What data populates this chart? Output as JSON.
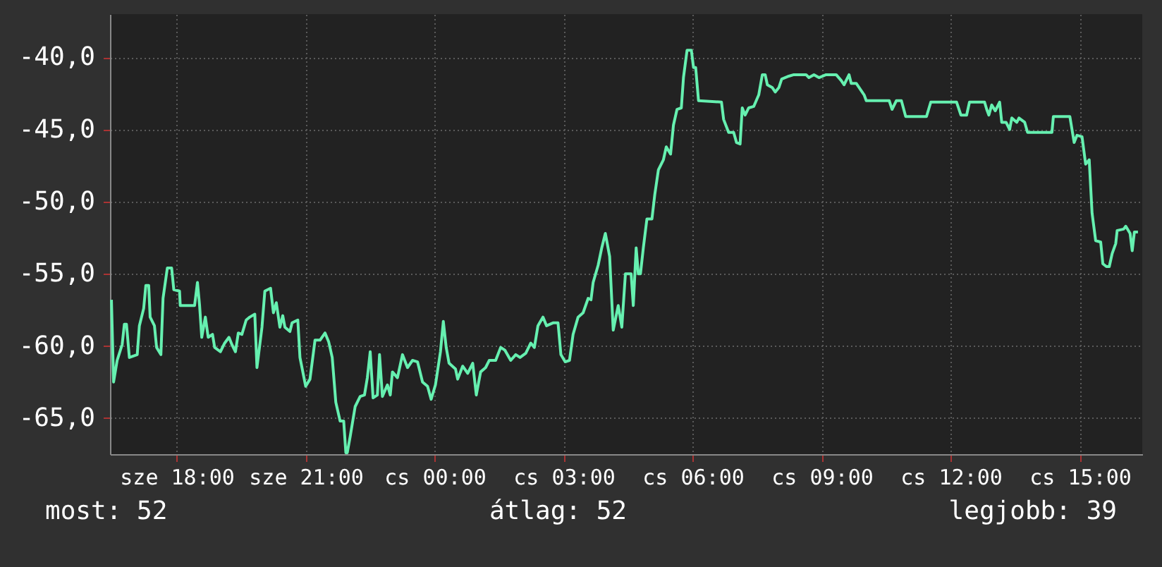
{
  "chart_data": {
    "type": "line",
    "x": [
      "--01-01T16:29",
      "--01-01T16:32",
      "--01-01T16:37",
      "--01-01T16:44",
      "--01-01T16:47",
      "--01-01T16:50",
      "--01-01T16:54",
      "--01-01T17:05",
      "--01-01T17:08",
      "--01-01T17:14",
      "--01-01T17:17",
      "--01-01T17:21",
      "--01-01T17:23",
      "--01-01T17:29",
      "--01-01T17:32",
      "--01-01T17:38",
      "--01-01T17:41",
      "--01-01T17:47",
      "--01-01T17:53",
      "--01-01T17:56",
      "--01-01T18:04",
      "--01-01T18:05",
      "--01-01T18:25",
      "--01-01T18:29",
      "--01-01T18:32",
      "--01-01T18:35",
      "--01-01T18:40",
      "--01-01T18:44",
      "--01-01T18:50",
      "--01-01T18:53",
      "--01-01T19:01",
      "--01-01T19:07",
      "--01-01T19:13",
      "--01-01T19:17",
      "--01-01T19:22",
      "--01-01T19:26",
      "--01-01T19:31",
      "--01-01T19:37",
      "--01-01T19:42",
      "--01-01T19:49",
      "--01-01T19:52",
      "--01-01T19:59",
      "--01-01T20:03",
      "--01-01T20:11",
      "--01-01T20:15",
      "--01-01T20:19",
      "--01-01T20:24",
      "--01-01T20:28",
      "--01-01T20:31",
      "--01-01T20:38",
      "--01-01T20:41",
      "--01-01T20:49",
      "--01-01T20:52",
      "--01-01T21:00",
      "--01-01T21:06",
      "--01-01T21:13",
      "--01-01T21:20",
      "--01-01T21:27",
      "--01-01T21:32",
      "--01-01T21:37",
      "--01-01T21:42",
      "--01-01T21:48",
      "--01-01T21:53",
      "--01-01T21:56",
      "--01-01T21:58",
      "--01-01T22:02",
      "--01-01T22:09",
      "--01-01T22:16",
      "--01-01T22:22",
      "--01-01T22:26",
      "--01-01T22:30",
      "--01-01T22:34",
      "--01-01T22:40",
      "--01-01T22:43",
      "--01-01T22:47",
      "--01-01T22:54",
      "--01-01T22:58",
      "--01-01T23:01",
      "--01-01T23:08",
      "--01-01T23:15",
      "--01-01T23:22",
      "--01-01T23:29",
      "--01-01T23:36",
      "--01-01T23:43",
      "--01-01T23:50",
      "--01-01T23:55",
      "--01-02T00:01",
      "--01-02T00:08",
      "--01-02T00:12",
      "--01-02T00:16",
      "--01-02T00:20",
      "--01-02T00:29",
      "--01-02T00:32",
      "--01-02T00:39",
      "--01-02T00:46",
      "--01-02T00:53",
      "--01-02T00:58",
      "--01-02T01:04",
      "--01-02T01:11",
      "--01-02T01:16",
      "--01-02T01:25",
      "--01-02T01:32",
      "--01-02T01:38",
      "--01-02T01:46",
      "--01-02T01:53",
      "--01-02T01:59",
      "--01-02T02:07",
      "--01-02T02:14",
      "--01-02T02:19",
      "--01-02T02:24",
      "--01-02T02:31",
      "--01-02T02:36",
      "--01-02T02:45",
      "--01-02T02:52",
      "--01-02T02:56",
      "--01-02T03:02",
      "--01-02T03:08",
      "--01-02T03:13",
      "--01-02T03:20",
      "--01-02T03:27",
      "--01-02T03:34",
      "--01-02T03:38",
      "--01-02T03:41",
      "--01-02T03:48",
      "--01-02T03:53",
      "--01-02T03:58",
      "--01-02T04:04",
      "--01-02T04:09",
      "--01-02T04:16",
      "--01-02T04:21",
      "--01-02T04:26",
      "--01-02T04:34",
      "--01-02T04:37",
      "--01-02T04:41",
      "--01-02T04:44",
      "--01-02T04:47",
      "--01-02T04:51",
      "--01-02T04:56",
      "--01-02T05:03",
      "--01-02T05:07",
      "--01-02T05:12",
      "--01-02T05:19",
      "--01-02T05:23",
      "--01-02T05:29",
      "--01-02T05:33",
      "--01-02T05:38",
      "--01-02T05:44",
      "--01-02T05:47",
      "--01-02T05:52",
      "--01-02T05:58",
      "--01-02T06:01",
      "--01-02T06:04",
      "--01-02T06:08",
      "--01-02T06:40",
      "--01-02T06:43",
      "--01-02T06:50",
      "--01-02T06:57",
      "--01-02T07:01",
      "--01-02T07:06",
      "--01-02T07:09",
      "--01-02T07:13",
      "--01-02T07:18",
      "--01-02T07:25",
      "--01-02T07:32",
      "--01-02T07:37",
      "--01-02T07:41",
      "--01-02T07:44",
      "--01-02T07:51",
      "--01-02T07:55",
      "--01-02T08:00",
      "--01-02T08:04",
      "--01-02T08:14",
      "--01-02T08:21",
      "--01-02T08:38",
      "--01-02T08:42",
      "--01-02T08:49",
      "--01-02T08:56",
      "--01-02T09:06",
      "--01-02T09:13",
      "--01-02T09:20",
      "--01-02T09:27",
      "--01-02T09:31",
      "--01-02T09:38",
      "--01-02T09:41",
      "--01-02T09:48",
      "--01-02T09:59",
      "--01-02T10:02",
      "--01-02T10:34",
      "--01-02T10:38",
      "--01-02T10:44",
      "--01-02T10:51",
      "--01-02T10:57",
      "--01-02T11:26",
      "--01-02T11:32",
      "--01-02T12:08",
      "--01-02T12:14",
      "--01-02T12:22",
      "--01-02T12:26",
      "--01-02T12:47",
      "--01-02T12:50",
      "--01-02T12:53",
      "--01-02T12:57",
      "--01-02T13:02",
      "--01-02T13:08",
      "--01-02T13:11",
      "--01-02T13:17",
      "--01-02T13:22",
      "--01-02T13:25",
      "--01-02T13:32",
      "--01-02T13:35",
      "--01-02T13:43",
      "--01-02T13:47",
      "--01-02T14:21",
      "--01-02T14:23",
      "--01-02T14:46",
      "--01-02T14:52",
      "--01-02T14:56",
      "--01-02T15:03",
      "--01-02T15:08",
      "--01-02T15:13",
      "--01-02T15:17",
      "--01-02T15:22",
      "--01-02T15:29",
      "--01-02T15:32",
      "--01-02T15:37",
      "--01-02T15:41",
      "--01-02T15:45",
      "--01-02T15:50",
      "--01-02T15:52",
      "--01-02T16:01",
      "--01-02T16:04",
      "--01-02T16:10",
      "--01-02T16:13",
      "--01-02T16:16",
      "--01-02T16:21"
    ],
    "series": [
      {
        "color": "#66f0b0",
        "values": [
          -56.8,
          -62.5,
          -61.0,
          -59.9,
          -58.5,
          -58.5,
          -60.8,
          -60.6,
          -58.6,
          -57.4,
          -55.8,
          -55.8,
          -58.0,
          -58.6,
          -60.1,
          -60.6,
          -56.7,
          -54.6,
          -54.6,
          -56.1,
          -56.2,
          -57.2,
          -57.2,
          -55.6,
          -57.2,
          -59.4,
          -58.0,
          -59.4,
          -59.2,
          -60.1,
          -60.4,
          -59.8,
          -59.4,
          -59.9,
          -60.4,
          -59.1,
          -59.2,
          -58.2,
          -58.0,
          -57.8,
          -61.5,
          -58.7,
          -56.2,
          -56.0,
          -57.7,
          -57.0,
          -58.7,
          -57.9,
          -58.7,
          -59.0,
          -58.4,
          -58.2,
          -60.8,
          -62.8,
          -62.3,
          -59.6,
          -59.6,
          -59.1,
          -59.7,
          -60.8,
          -63.9,
          -65.2,
          -65.2,
          -67.4,
          -67.4,
          -66.3,
          -64.2,
          -63.5,
          -63.4,
          -62.2,
          -60.4,
          -63.6,
          -63.4,
          -60.6,
          -63.5,
          -62.7,
          -63.4,
          -61.8,
          -62.2,
          -60.6,
          -61.5,
          -61.0,
          -61.1,
          -62.5,
          -62.8,
          -63.7,
          -62.7,
          -60.4,
          -58.3,
          -60.1,
          -61.2,
          -61.6,
          -62.3,
          -61.4,
          -61.9,
          -61.2,
          -63.4,
          -61.8,
          -61.5,
          -61.0,
          -61.0,
          -60.1,
          -60.3,
          -61.0,
          -60.6,
          -60.8,
          -60.5,
          -59.8,
          -60.1,
          -58.6,
          -58.0,
          -58.6,
          -58.4,
          -58.4,
          -60.6,
          -61.1,
          -61.0,
          -59.2,
          -58.0,
          -57.7,
          -56.7,
          -56.8,
          -55.6,
          -54.4,
          -53.2,
          -52.2,
          -53.8,
          -58.9,
          -57.2,
          -58.7,
          -55.0,
          -55.0,
          -57.2,
          -53.2,
          -55.0,
          -55.0,
          -53.2,
          -51.2,
          -51.2,
          -49.5,
          -47.8,
          -47.1,
          -46.2,
          -46.7,
          -44.7,
          -43.6,
          -43.5,
          -41.4,
          -39.5,
          -39.5,
          -40.7,
          -40.7,
          -43.0,
          -43.1,
          -44.3,
          -45.2,
          -45.2,
          -45.9,
          -46.0,
          -43.5,
          -44.0,
          -43.5,
          -43.4,
          -42.6,
          -41.2,
          -41.2,
          -41.9,
          -42.1,
          -42.4,
          -42.1,
          -41.5,
          -41.3,
          -41.2,
          -41.2,
          -41.4,
          -41.2,
          -41.4,
          -41.2,
          -41.2,
          -41.2,
          -41.6,
          -41.9,
          -41.2,
          -41.8,
          -41.8,
          -42.6,
          -43.0,
          -43.0,
          -43.6,
          -43.0,
          -43.0,
          -44.1,
          -44.1,
          -43.1,
          -43.1,
          -44.0,
          -44.0,
          -43.1,
          -43.1,
          -43.6,
          -44.0,
          -43.3,
          -43.7,
          -43.1,
          -44.5,
          -44.5,
          -45.0,
          -44.2,
          -44.5,
          -44.2,
          -44.5,
          -45.2,
          -45.2,
          -44.1,
          -44.1,
          -45.9,
          -45.4,
          -45.5,
          -47.4,
          -47.1,
          -50.8,
          -52.7,
          -52.8,
          -54.3,
          -54.5,
          -54.5,
          -53.6,
          -52.9,
          -52.0,
          -51.9,
          -51.7,
          -52.2,
          -53.4,
          -52.1,
          -52.1
        ]
      }
    ],
    "xlim": [
      "--01-01T16:27",
      "--01-02T16:27"
    ],
    "xticks": [
      {
        "value": "--01-01T18:00",
        "label": "sze 18:00"
      },
      {
        "value": "--01-01T21:00",
        "label": "sze 21:00"
      },
      {
        "value": "--01-02T00:00",
        "label": "cs 00:00"
      },
      {
        "value": "--01-02T03:00",
        "label": "cs 03:00"
      },
      {
        "value": "--01-02T06:00",
        "label": "cs 06:00"
      },
      {
        "value": "--01-02T09:00",
        "label": "cs 09:00"
      },
      {
        "value": "--01-02T12:00",
        "label": "cs 12:00"
      },
      {
        "value": "--01-02T15:00",
        "label": "cs 15:00"
      }
    ],
    "ylim": [
      -67.5,
      -37
    ],
    "yticks": [
      {
        "value": -65,
        "label": "-65,0"
      },
      {
        "value": -60,
        "label": "-60,0"
      },
      {
        "value": -55,
        "label": "-55,0"
      },
      {
        "value": -50,
        "label": "-50,0"
      },
      {
        "value": -45,
        "label": "-45,0"
      },
      {
        "value": -40,
        "label": "-40,0"
      }
    ],
    "grid": true,
    "annotations": [
      "most: 52",
      "átlag: 52",
      "legjobb: 39"
    ]
  }
}
